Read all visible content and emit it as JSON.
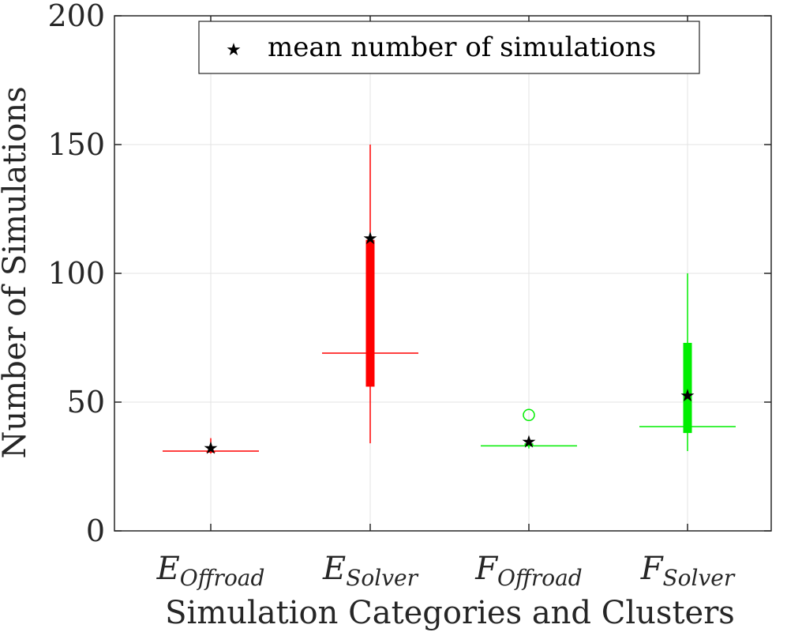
{
  "chart_data": {
    "type": "boxplot",
    "title": "",
    "xlabel": "Simulation Categories and Clusters",
    "ylabel": "Number of Simulations",
    "ylim": [
      0,
      200
    ],
    "yticks": [
      0,
      50,
      100,
      150,
      200
    ],
    "yticklabels": [
      "0",
      "50",
      "100",
      "150",
      "200"
    ],
    "grid": true,
    "legend": {
      "label": "mean number of simulations",
      "marker": "★",
      "position": "top"
    },
    "categories": [
      {
        "main": "E",
        "sub": "Offroad",
        "color": "#ff0000",
        "whisker_low": 30,
        "q1": 31,
        "median": 31,
        "q3": 31,
        "whisker_high": 36,
        "mean": 32,
        "outliers": []
      },
      {
        "main": "E",
        "sub": "Solver",
        "color": "#ff0000",
        "whisker_low": 34,
        "q1": 56,
        "median": 69,
        "q3": 113,
        "whisker_high": 150,
        "mean": 113.5,
        "outliers": []
      },
      {
        "main": "F",
        "sub": "Offroad",
        "color": "#00ee00",
        "whisker_low": 32,
        "q1": 33,
        "median": 33,
        "q3": 34,
        "whisker_high": 34,
        "mean": 34.5,
        "outliers": [
          45
        ]
      },
      {
        "main": "F",
        "sub": "Solver",
        "color": "#00ee00",
        "whisker_low": 31,
        "q1": 38,
        "median": 40.5,
        "q3": 73,
        "whisker_high": 100,
        "mean": 52.5,
        "outliers": []
      }
    ]
  }
}
